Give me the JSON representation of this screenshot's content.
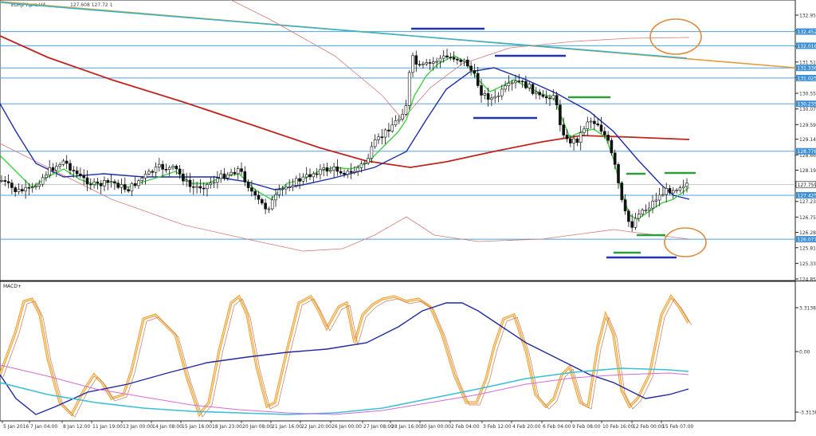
{
  "window": {
    "symbol_label": "EURJPY,pro,H4",
    "ohlc_readout": "127.608 127.72 1"
  },
  "colors": {
    "background": "#ffffff",
    "frame": "#222222",
    "hline": "#4aa3df",
    "price_label_bg": "#3d8fd6",
    "price_label_text": "#ffffff",
    "candle_up": "#ffffff",
    "candle_down": "#111111",
    "ema_fast": "#3fcf3f",
    "ema_mid": "#1c2faa",
    "ma_slow_red": "#c0241d",
    "ma_thin_pink": "#d07a7a",
    "trendline_orange": "#e79a3a",
    "trendline_cyan": "#34b6c6",
    "annotation_blue": "#2433b0",
    "annotation_green": "#2e9e3a",
    "annotation_circle": "#e08a3a",
    "macd_orange": "#f0a030",
    "macd_blue": "#1f2aa0",
    "macd_cyan": "#39c0d6",
    "macd_magenta": "#d46ad4",
    "macd_brown": "#c47a5a"
  },
  "price_axis": {
    "ticks": [
      "132.956",
      "132.476",
      "131.996",
      "131.516",
      "131.036",
      "130.556",
      "130.076",
      "129.596",
      "129.146",
      "128.666",
      "128.196",
      "127.716",
      "127.236",
      "126.756",
      "126.286",
      "125.816",
      "125.336",
      "124.856"
    ],
    "highlighted_levels": [
      {
        "label": "132.452",
        "value": 132.452
      },
      {
        "label": "132.016",
        "value": 132.016
      },
      {
        "label": "131.336",
        "value": 131.336
      },
      {
        "label": "131.025",
        "value": 131.025
      },
      {
        "label": "130.235",
        "value": 130.235
      },
      {
        "label": "128.778",
        "value": 128.778
      },
      {
        "label": "127.425",
        "value": 127.425
      },
      {
        "label": "126.077",
        "value": 126.077
      }
    ],
    "current_price": {
      "label": "127.759",
      "value": 127.759
    }
  },
  "macd": {
    "label": "MACD+",
    "ticks": [
      "3.3138",
      "0.00",
      "-3.3138"
    ]
  },
  "time_axis": {
    "labels": [
      "5 Jan 2016",
      "7 Jan 04:00",
      "8 Jan 12:00",
      "11 Jan 19:00",
      "13 Jan 00:00",
      "14 Jan 08:00",
      "15 Jan 16:00",
      "18 Jan 23:00",
      "20 Jan 08:00",
      "21 Jan 16:00",
      "22 Jan 20:00",
      "26 Jan 00:00",
      "27 Jan 08:00",
      "28 Jan 16:00",
      "30 Jan 00:00",
      "2 Feb 04:00",
      "3 Feb 12:00",
      "4 Feb 20:00",
      "6 Feb 04:00",
      "9 Feb 08:00",
      "10 Feb 16:00",
      "12 Feb 00:00",
      "15 Feb 07:00"
    ]
  }
}
